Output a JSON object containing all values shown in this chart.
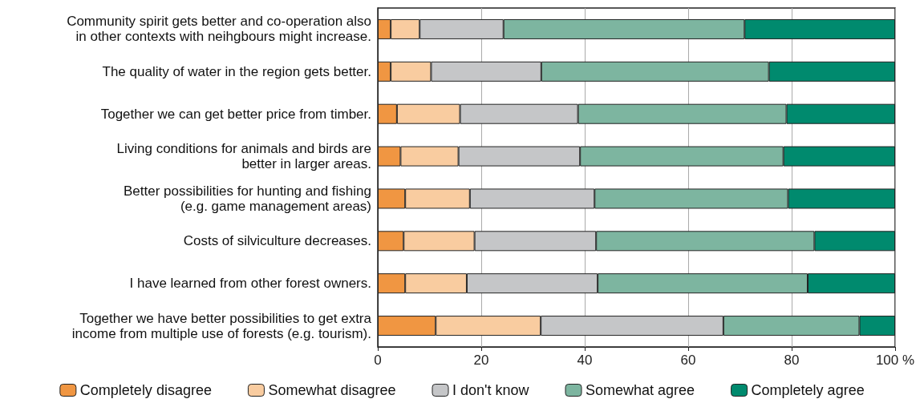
{
  "chart_data": {
    "type": "bar",
    "orientation": "horizontal",
    "stacked": true,
    "categories": [
      "Community spirit gets better and co-operation also\nin other contexts with neihgbours might increase.",
      "The quality of water in the region gets better.",
      "Together we can get better price from timber.",
      "Living conditions for animals and birds are\nbetter in larger areas.",
      "Better possibilities for hunting and fishing\n(e.g. game management areas)",
      "Costs of silviculture decreases.",
      "I have learned from other forest owners.",
      "Together we have better possibilities to get extra\nincome from multiple use of forests (e.g. tourism)."
    ],
    "series": [
      {
        "name": "Completely disagree",
        "color": "#f09642",
        "values": [
          2.5,
          2.5,
          3.7,
          4.4,
          5.3,
          5.0,
          5.3,
          11.2
        ]
      },
      {
        "name": "Somewhat disagree",
        "color": "#f9cca0",
        "values": [
          5.6,
          7.8,
          12.2,
          11.2,
          12.5,
          13.7,
          11.9,
          20.3
        ]
      },
      {
        "name": "I don't know",
        "color": "#c5c6c8",
        "values": [
          16.2,
          21.3,
          22.8,
          23.5,
          24.1,
          23.5,
          25.3,
          35.3
        ]
      },
      {
        "name": "Somewhat agree",
        "color": "#7db5a0",
        "values": [
          46.6,
          44.0,
          40.3,
          39.3,
          37.4,
          42.2,
          40.6,
          26.3
        ]
      },
      {
        "name": "Completely agree",
        "color": "#008a6e",
        "values": [
          29.1,
          24.4,
          21.0,
          21.6,
          20.7,
          15.6,
          16.9,
          6.9
        ]
      }
    ],
    "xlim": [
      0,
      100
    ],
    "xticks": [
      0,
      20,
      40,
      60,
      {
        "value": 100,
        "label": "100 %"
      },
      80
    ],
    "grid": "x",
    "legend": "bottom"
  }
}
